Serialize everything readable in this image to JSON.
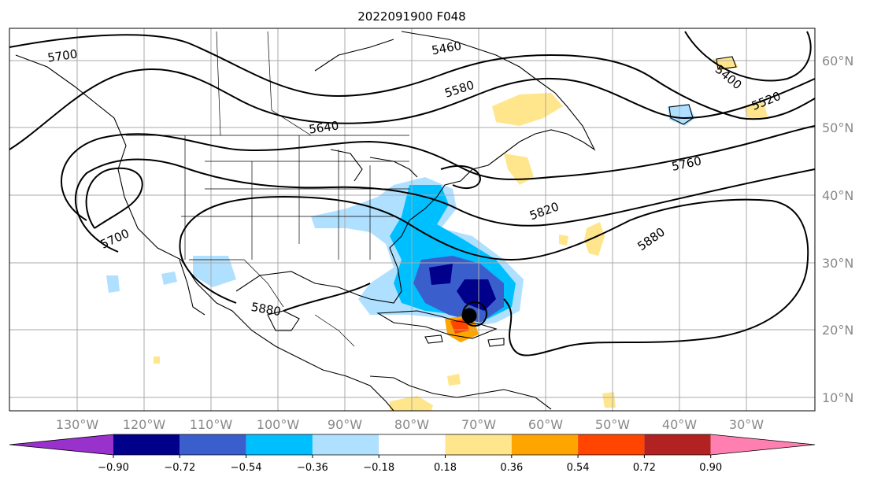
{
  "title": "2022091900 F048",
  "lon_labels": [
    "130°W",
    "120°W",
    "110°W",
    "100°W",
    "90°W",
    "80°W",
    "70°W",
    "60°W",
    "50°W",
    "40°W",
    "30°W"
  ],
  "lat_labels": [
    "60°N",
    "50°N",
    "40°N",
    "30°N",
    "20°N",
    "10°N"
  ],
  "contour_labels": [
    "5700",
    "5460",
    "5400",
    "5580",
    "5520",
    "5640",
    "5760",
    "5820",
    "5700",
    "5880",
    "5880"
  ],
  "colorbar": {
    "ticks": [
      "−0.90",
      "−0.72",
      "−0.54",
      "−0.36",
      "−0.18",
      "0.18",
      "0.36",
      "0.54",
      "0.72",
      "0.90"
    ],
    "colors": [
      "#9932cc",
      "#00008b",
      "#3a5fcd",
      "#00bfff",
      "#b0e0ff",
      "#ffffff",
      "#ffe68c",
      "#ffa500",
      "#ff4500",
      "#b22222",
      "#ff80b0"
    ]
  }
}
